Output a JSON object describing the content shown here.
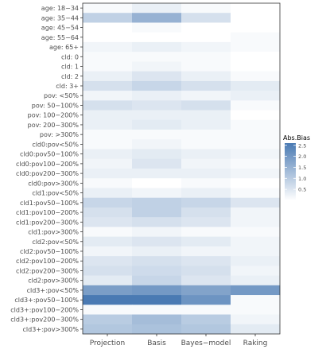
{
  "chart_data": {
    "type": "heatmap",
    "title": "",
    "xlabel": "",
    "ylabel": "",
    "x": [
      "Projection",
      "Basis",
      "Bayes−model",
      "Raking"
    ],
    "y": [
      "age: 18−34",
      "age: 35−44",
      "age: 45−54",
      "age: 55−64",
      "age: 65+",
      "cld: 0",
      "cld: 1",
      "cld: 2",
      "cld: 3+",
      "pov: <50%",
      "pov: 50−100%",
      "pov: 100−200%",
      "pov: 200−300%",
      "pov: >300%",
      "cld0:pov<50%",
      "cld0:pov50−100%",
      "cld0:pov100−200%",
      "cld0:pov200−300%",
      "cld0:pov>300%",
      "cld1:pov<50%",
      "cld1:pov50−100%",
      "cld1:pov100−200%",
      "cld1:pov200−300%",
      "cld1:pov>300%",
      "cld2:pov<50%",
      "cld2:pov50−100%",
      "cld2:pov100−200%",
      "cld2:pov200−300%",
      "cld2:pov>300%",
      "cld3+:pov<50%",
      "cld3+:pov50−100%",
      "cld3+:pov100−200%",
      "cld3+:pov200−300%",
      "cld3+:pov>300%"
    ],
    "values": [
      [
        0.1,
        0.3,
        0.1,
        0.0
      ],
      [
        0.9,
        1.5,
        0.6,
        0.0
      ],
      [
        0.0,
        0.1,
        0.0,
        0.0
      ],
      [
        0.0,
        0.0,
        0.0,
        0.1
      ],
      [
        0.2,
        0.3,
        0.2,
        0.1
      ],
      [
        0.1,
        0.1,
        0.1,
        0.0
      ],
      [
        0.1,
        0.2,
        0.1,
        0.0
      ],
      [
        0.3,
        0.5,
        0.3,
        0.1
      ],
      [
        0.6,
        0.8,
        0.6,
        0.4
      ],
      [
        0.2,
        0.3,
        0.2,
        0.3
      ],
      [
        0.6,
        0.5,
        0.6,
        0.1
      ],
      [
        0.3,
        0.3,
        0.3,
        0.0
      ],
      [
        0.3,
        0.4,
        0.3,
        0.1
      ],
      [
        0.1,
        0.1,
        0.1,
        0.1
      ],
      [
        0.1,
        0.2,
        0.1,
        0.1
      ],
      [
        0.3,
        0.4,
        0.3,
        0.2
      ],
      [
        0.2,
        0.5,
        0.2,
        0.1
      ],
      [
        0.3,
        0.3,
        0.3,
        0.2
      ],
      [
        0.1,
        0.0,
        0.1,
        0.0
      ],
      [
        0.3,
        0.2,
        0.3,
        0.1
      ],
      [
        0.8,
        0.9,
        0.8,
        0.5
      ],
      [
        0.6,
        0.9,
        0.6,
        0.2
      ],
      [
        0.5,
        0.6,
        0.5,
        0.2
      ],
      [
        0.1,
        0.2,
        0.1,
        0.1
      ],
      [
        0.4,
        0.5,
        0.4,
        0.2
      ],
      [
        0.2,
        0.3,
        0.2,
        0.2
      ],
      [
        0.5,
        0.6,
        0.5,
        0.3
      ],
      [
        0.6,
        0.7,
        0.6,
        0.2
      ],
      [
        0.4,
        0.8,
        0.5,
        0.3
      ],
      [
        1.9,
        2.0,
        1.8,
        2.0
      ],
      [
        2.6,
        2.6,
        2.1,
        0.1
      ],
      [
        0.1,
        0.1,
        0.1,
        0.1
      ],
      [
        1.0,
        1.3,
        1.0,
        0.2
      ],
      [
        1.1,
        1.2,
        1.1,
        0.4
      ]
    ],
    "legend": {
      "title": "Abs.Bias",
      "ticks": [
        "2.5",
        "2.0",
        "1.5",
        "1.0",
        "0.5"
      ],
      "tick_values": [
        2.5,
        2.0,
        1.5,
        1.0,
        0.5
      ],
      "range": [
        0,
        2.6
      ],
      "position": "right"
    },
    "colors": {
      "low": "#ffffff",
      "high": "#4a7ab3"
    },
    "grid": false
  }
}
